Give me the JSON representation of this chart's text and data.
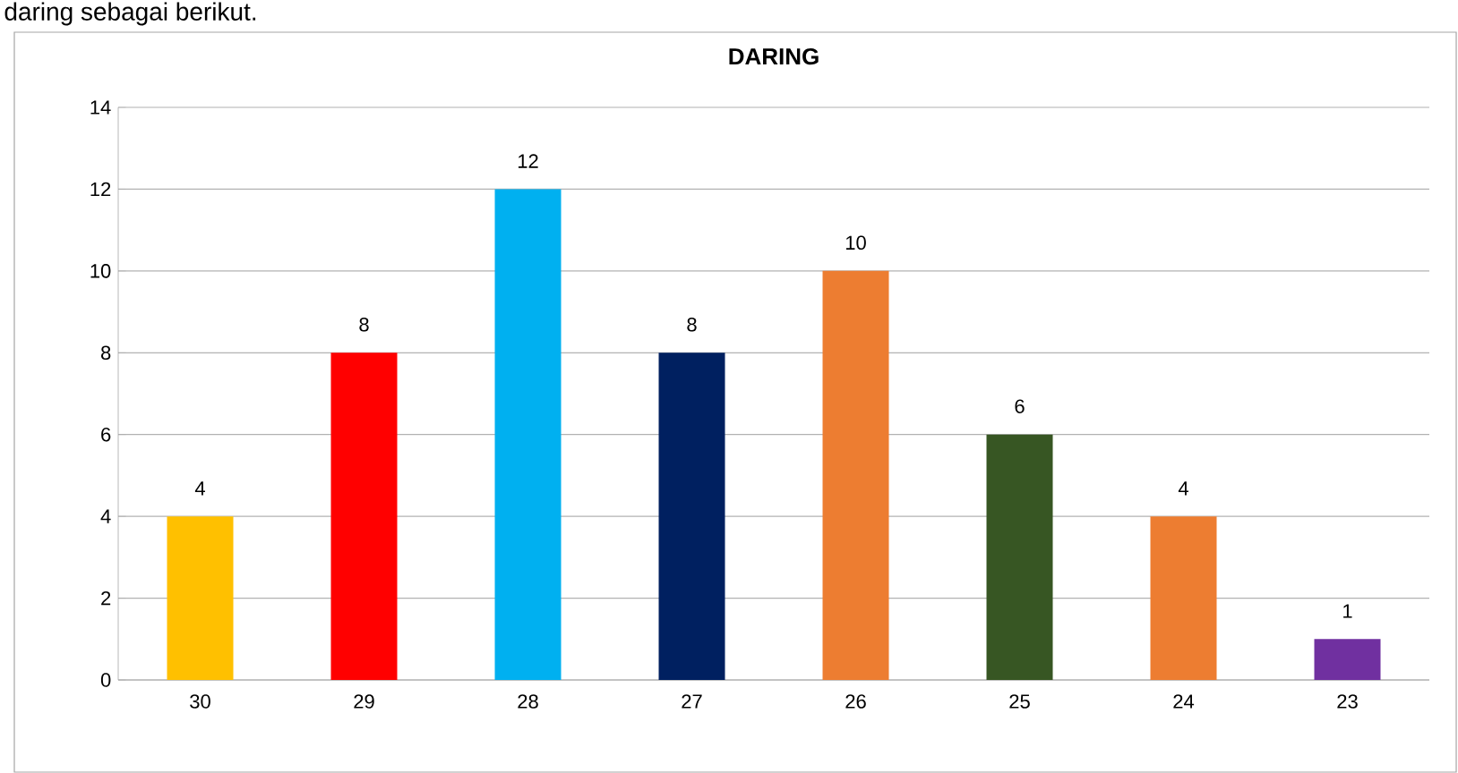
{
  "chart_data": {
    "type": "bar",
    "title": "DARING",
    "annotations": [
      "daring sebagai berikut."
    ],
    "categories": [
      "30",
      "29",
      "28",
      "27",
      "26",
      "25",
      "24",
      "23"
    ],
    "values": [
      4,
      8,
      12,
      8,
      10,
      6,
      4,
      1
    ],
    "colors": [
      "#ffc000",
      "#ff0000",
      "#00b0f0",
      "#002060",
      "#ed7d31",
      "#375623",
      "#ed7d31",
      "#7030a0"
    ],
    "ylim": [
      0,
      14
    ],
    "yticks": [
      0,
      2,
      4,
      6,
      8,
      10,
      12,
      14
    ],
    "grid": "y",
    "data_labels": true
  }
}
